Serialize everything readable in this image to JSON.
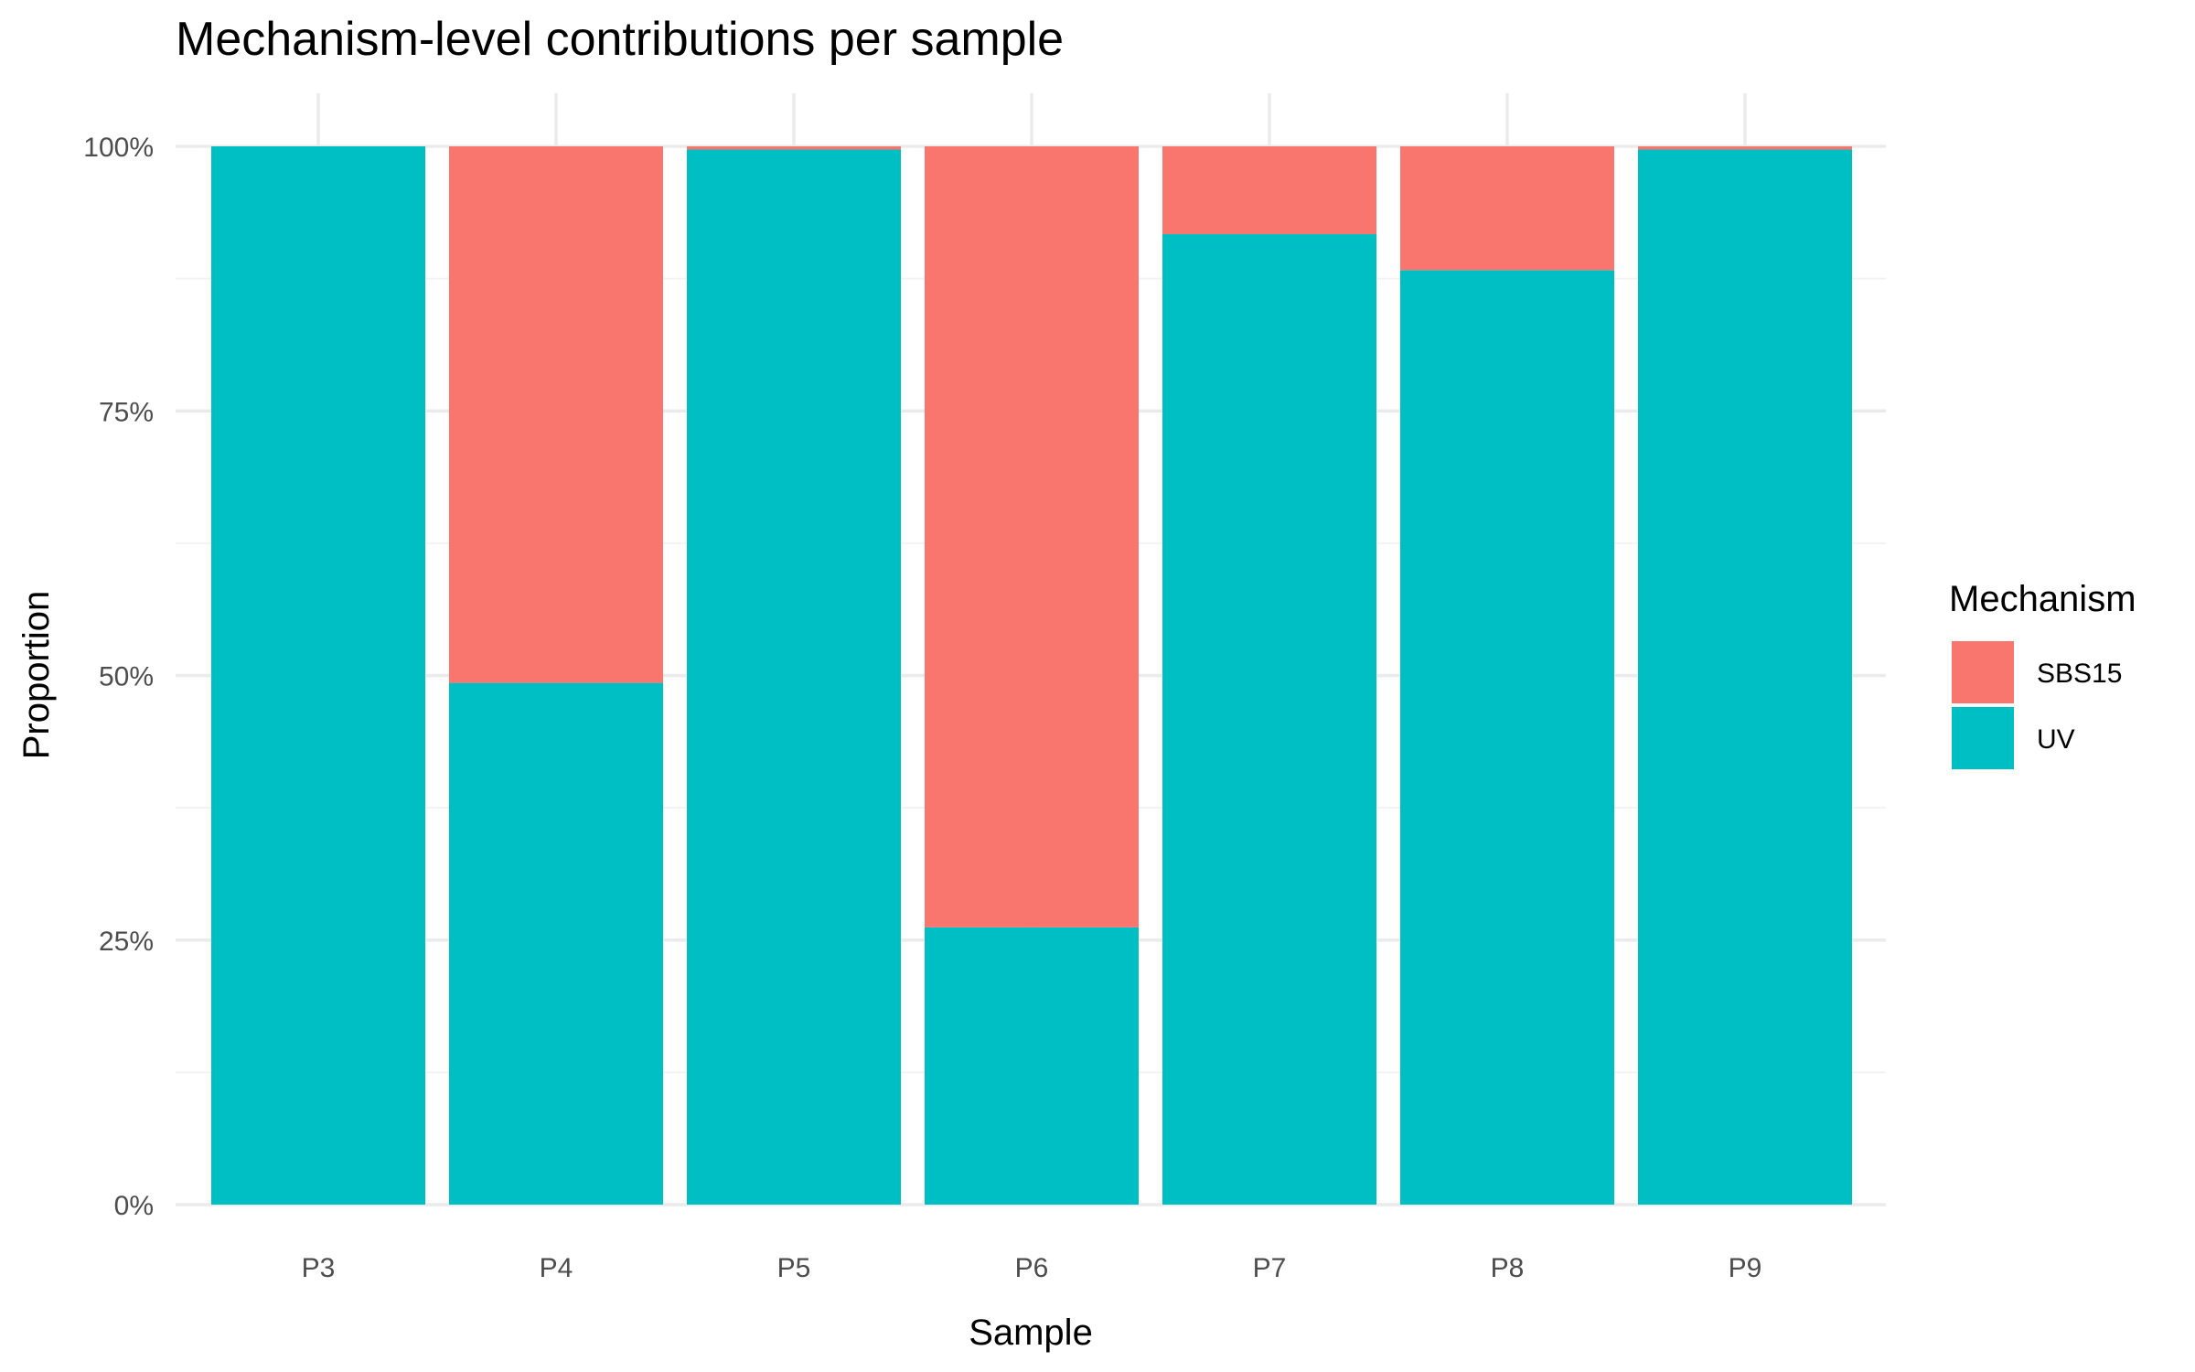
{
  "chart_data": {
    "type": "bar",
    "stacked": true,
    "title": "Mechanism-level contributions per sample",
    "xlabel": "Sample",
    "ylabel": "Proportion",
    "ylim": [
      0,
      1
    ],
    "yticks": [
      0,
      0.25,
      0.5,
      0.75,
      1
    ],
    "ytick_labels": [
      "0%",
      "25%",
      "50%",
      "75%",
      "100%"
    ],
    "categories": [
      "P3",
      "P4",
      "P5",
      "P6",
      "P7",
      "P8",
      "P9"
    ],
    "series": [
      {
        "name": "UV",
        "color": "#00BFC4",
        "values": [
          1.0,
          0.493,
          0.997,
          0.262,
          0.917,
          0.883,
          0.997
        ]
      },
      {
        "name": "SBS15",
        "color": "#F8766D",
        "values": [
          0.0,
          0.507,
          0.003,
          0.738,
          0.083,
          0.117,
          0.003
        ]
      }
    ],
    "legend": {
      "title": "Mechanism",
      "placement": "right",
      "entries": [
        "SBS15",
        "UV"
      ]
    },
    "grid": true
  }
}
